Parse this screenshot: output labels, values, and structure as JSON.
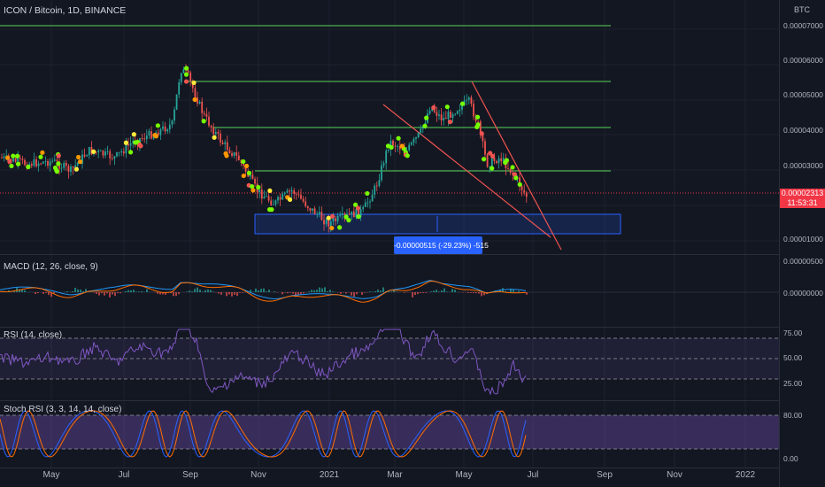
{
  "header": {
    "title": "ICON / Bitcoin, 1D, BINANCE",
    "unit": "BTC"
  },
  "price_axis": {
    "labels": [
      "0.00007000",
      "0.00006000",
      "0.00005000",
      "0.00004000",
      "0.00003000",
      "0.00001000"
    ],
    "current_price": "0.00002313",
    "countdown": "11:53:31"
  },
  "measure": {
    "label": "-0.00000515 (-29.23%) -515"
  },
  "macd": {
    "title": "MACD (12, 26, close, 9)",
    "labels": [
      "0.00000500",
      "0.00000000"
    ]
  },
  "rsi": {
    "title": "RSI (14, close)",
    "labels": [
      "75.00",
      "50.00",
      "25.00"
    ]
  },
  "stoch": {
    "title": "Stoch RSI (3, 3, 14, 14, close)",
    "labels": [
      "80.00",
      "0.00"
    ]
  },
  "time_axis": {
    "labels": [
      "May",
      "Jul",
      "Sep",
      "Nov",
      "2021",
      "Mar",
      "May",
      "Jul",
      "Sep",
      "Nov",
      "2022"
    ]
  },
  "colors": {
    "background": "#131722",
    "support_lines": "#4caf50",
    "trend_lines": "#ef5350",
    "box": "#2962ff",
    "macd": "#2196f3",
    "signal": "#ff6d00",
    "rsi": "#7e57c2",
    "stoch_k": "#2962ff",
    "stoch_d": "#ff6d00"
  }
}
